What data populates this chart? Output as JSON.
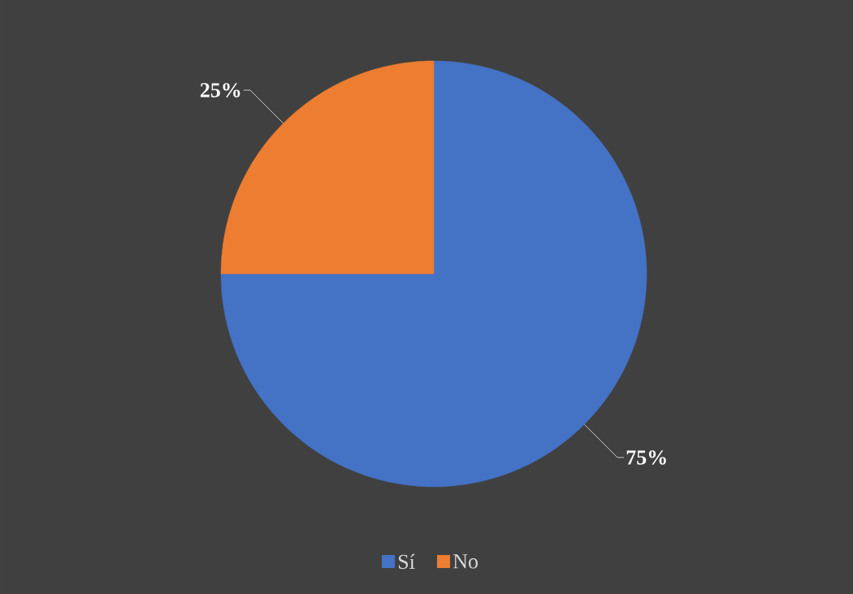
{
  "chart_data": {
    "type": "pie",
    "categories": [
      "Sí",
      "No"
    ],
    "values": [
      75,
      25
    ],
    "colors": [
      "#4472c4",
      "#ed7d31"
    ],
    "value_labels": [
      "75%",
      "25%"
    ],
    "legend": "bottom"
  }
}
